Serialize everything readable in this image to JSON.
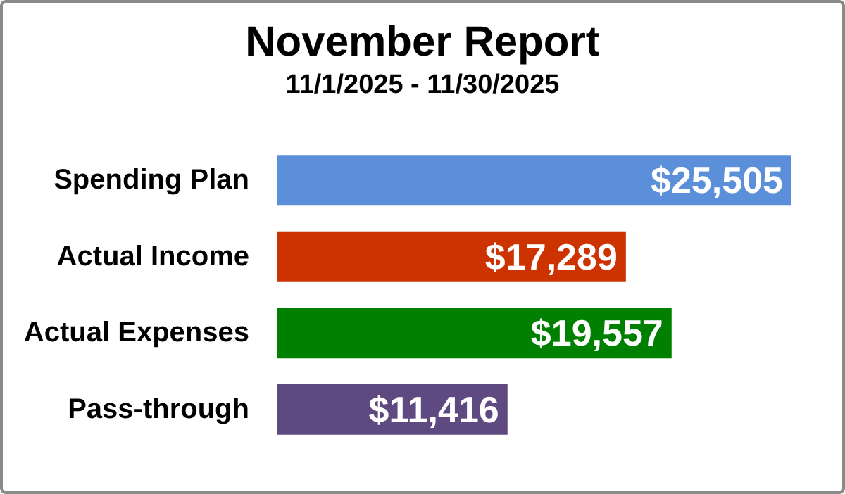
{
  "chart_data": {
    "type": "bar",
    "orientation": "horizontal",
    "title": "November Report",
    "subtitle": "11/1/2025 - 11/30/2025",
    "categories": [
      "Spending Plan",
      "Actual Income",
      "Actual Expenses",
      "Pass-through"
    ],
    "values": [
      25505,
      17289,
      19557,
      11416
    ],
    "colors": [
      "#5b8fd9",
      "#cc3300",
      "#008000",
      "#5e4a80"
    ],
    "value_labels": [
      "$25,505",
      "$17,289",
      "$19,557",
      "$11,416"
    ]
  }
}
